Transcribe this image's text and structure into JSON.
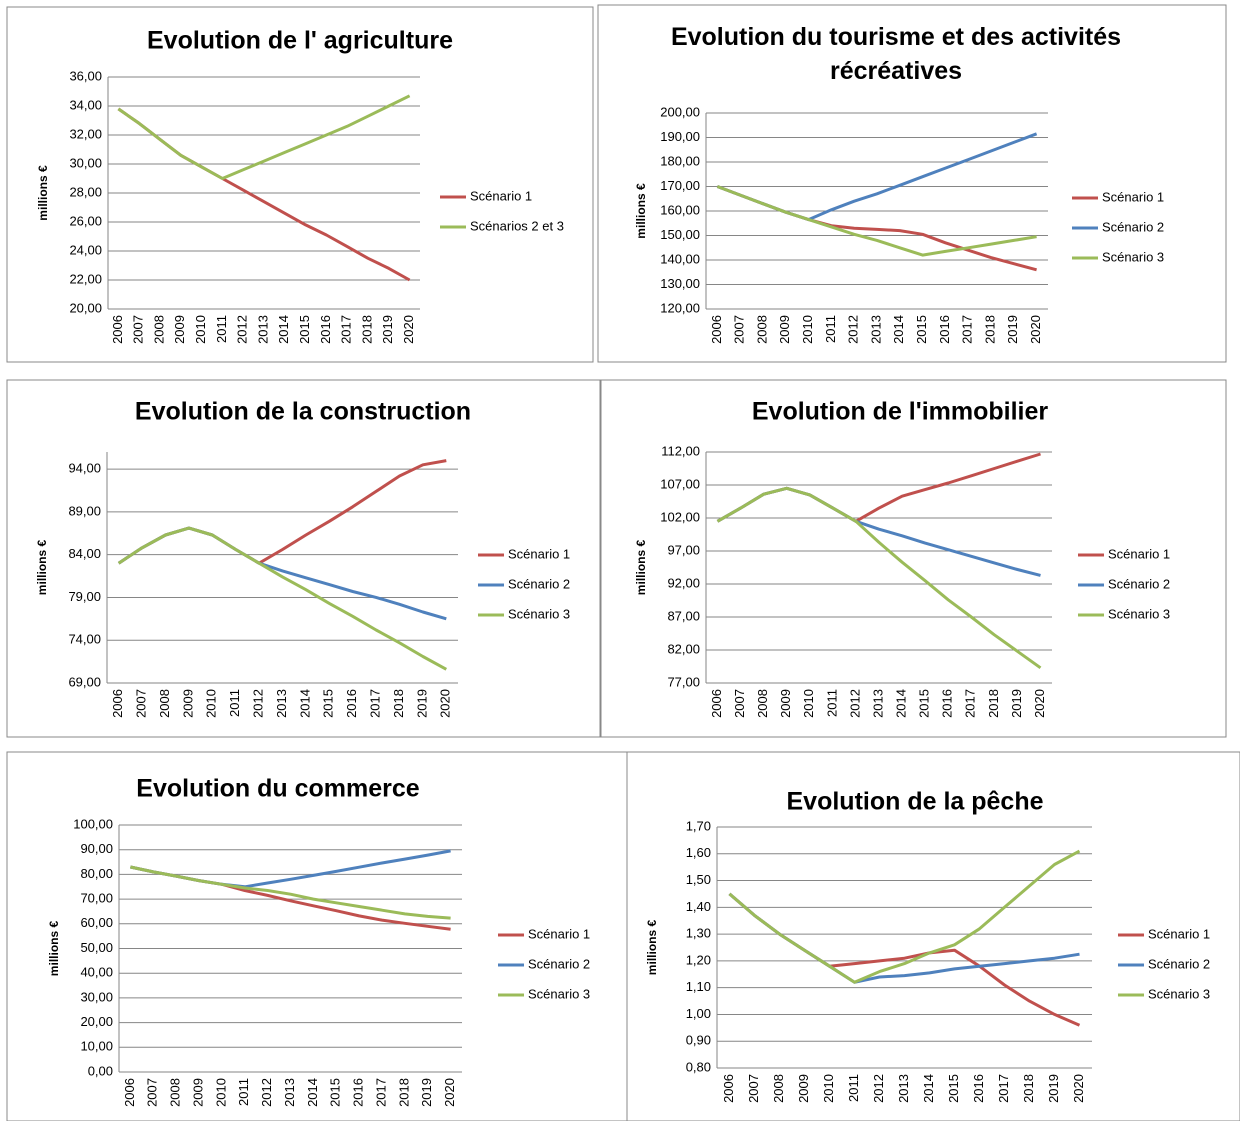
{
  "chart_data": [
    {
      "type": "line",
      "title": "Evolution de l' agriculture",
      "y_label": "millions €",
      "categories": [
        "2006",
        "2007",
        "2008",
        "2009",
        "2010",
        "2011",
        "2012",
        "2013",
        "2014",
        "2015",
        "2016",
        "2017",
        "2018",
        "2019",
        "2020"
      ],
      "ylim": [
        20,
        36
      ],
      "yticks": [
        {
          "value": 20,
          "label": "20,00"
        },
        {
          "value": 22,
          "label": "22,00"
        },
        {
          "value": 24,
          "label": "24,00"
        },
        {
          "value": 26,
          "label": "26,00"
        },
        {
          "value": 28,
          "label": "28,00"
        },
        {
          "value": 30,
          "label": "30,00"
        },
        {
          "value": 32,
          "label": "32,00"
        },
        {
          "value": 34,
          "label": "34,00"
        },
        {
          "value": 36,
          "label": "36,00"
        }
      ],
      "grid": true,
      "series": [
        {
          "name": "Scénario 1",
          "color": "#c0504d",
          "values": [
            33.8,
            32.8,
            31.7,
            30.6,
            29.8,
            29.0,
            28.2,
            27.4,
            26.6,
            25.8,
            25.1,
            24.3,
            23.5,
            22.8,
            22.0
          ]
        },
        {
          "name": "Scénarios 2 et 3",
          "color": "#9bbb59",
          "values": [
            33.8,
            32.8,
            31.7,
            30.6,
            29.8,
            29.0,
            29.6,
            30.2,
            30.8,
            31.4,
            32.0,
            32.6,
            33.3,
            34.0,
            34.7
          ]
        }
      ]
    },
    {
      "type": "line",
      "title": "Evolution du tourisme et des activités récréatives",
      "y_label": "millions €",
      "categories": [
        "2006",
        "2007",
        "2008",
        "2009",
        "2010",
        "2011",
        "2012",
        "2013",
        "2014",
        "2015",
        "2016",
        "2017",
        "2018",
        "2019",
        "2020"
      ],
      "ylim": [
        120,
        200
      ],
      "yticks": [
        {
          "value": 120,
          "label": "120,00"
        },
        {
          "value": 130,
          "label": "130,00"
        },
        {
          "value": 140,
          "label": "140,00"
        },
        {
          "value": 150,
          "label": "150,00"
        },
        {
          "value": 160,
          "label": "160,00"
        },
        {
          "value": 170,
          "label": "170,00"
        },
        {
          "value": 180,
          "label": "180,00"
        },
        {
          "value": 190,
          "label": "190,00"
        },
        {
          "value": 200,
          "label": "200,00"
        }
      ],
      "grid": true,
      "series": [
        {
          "name": "Scénario 1",
          "color": "#c0504d",
          "values": [
            170,
            166.5,
            163,
            159.5,
            156.5,
            154,
            153,
            152.5,
            152,
            150.5,
            147,
            144,
            141,
            138.5,
            136
          ]
        },
        {
          "name": "Scénario 2",
          "color": "#4f81bd",
          "values": [
            170,
            166.5,
            163,
            159.5,
            156.5,
            160.5,
            164,
            167,
            170.5,
            174,
            177.5,
            181,
            184.5,
            188,
            191.5
          ]
        },
        {
          "name": "Scénario 3",
          "color": "#9bbb59",
          "values": [
            170,
            166.5,
            163,
            159.5,
            156.5,
            153.5,
            150.5,
            148,
            145,
            142,
            143.5,
            145,
            146.5,
            148,
            149.5
          ]
        }
      ]
    },
    {
      "type": "line",
      "title": "Evolution de la construction",
      "y_label": "millions €",
      "categories": [
        "2006",
        "2007",
        "2008",
        "2009",
        "2010",
        "2011",
        "2012",
        "2013",
        "2014",
        "2015",
        "2016",
        "2017",
        "2018",
        "2019",
        "2020"
      ],
      "ylim": [
        69,
        96
      ],
      "yticks": [
        {
          "value": 69,
          "label": "69,00"
        },
        {
          "value": 74,
          "label": "74,00"
        },
        {
          "value": 79,
          "label": "79,00"
        },
        {
          "value": 84,
          "label": "84,00"
        },
        {
          "value": 89,
          "label": "89,00"
        },
        {
          "value": 94,
          "label": "94,00"
        }
      ],
      "grid": true,
      "series": [
        {
          "name": "Scénario 1",
          "color": "#c0504d",
          "values": [
            83.0,
            84.8,
            86.3,
            87.1,
            86.3,
            84.6,
            83.0,
            84.6,
            86.3,
            87.9,
            89.6,
            91.4,
            93.2,
            94.5,
            95.0
          ]
        },
        {
          "name": "Scénario 2",
          "color": "#4f81bd",
          "values": [
            83.0,
            84.8,
            86.3,
            87.1,
            86.3,
            84.6,
            83.0,
            82.1,
            81.3,
            80.5,
            79.7,
            79.0,
            78.2,
            77.3,
            76.5
          ]
        },
        {
          "name": "Scénario 3",
          "color": "#9bbb59",
          "values": [
            83.0,
            84.8,
            86.3,
            87.1,
            86.3,
            84.6,
            83.0,
            81.4,
            79.9,
            78.3,
            76.8,
            75.2,
            73.7,
            72.1,
            70.6
          ]
        }
      ]
    },
    {
      "type": "line",
      "title": "Evolution de l'immobilier",
      "y_label": "millions €",
      "categories": [
        "2006",
        "2007",
        "2008",
        "2009",
        "2010",
        "2011",
        "2012",
        "2013",
        "2014",
        "2015",
        "2016",
        "2017",
        "2018",
        "2019",
        "2020"
      ],
      "ylim": [
        77,
        112
      ],
      "yticks": [
        {
          "value": 77,
          "label": "77,00"
        },
        {
          "value": 82,
          "label": "82,00"
        },
        {
          "value": 87,
          "label": "87,00"
        },
        {
          "value": 92,
          "label": "92,00"
        },
        {
          "value": 97,
          "label": "97,00"
        },
        {
          "value": 102,
          "label": "102,00"
        },
        {
          "value": 107,
          "label": "107,00"
        },
        {
          "value": 112,
          "label": "112,00"
        }
      ],
      "grid": true,
      "series": [
        {
          "name": "Scénario 1",
          "color": "#c0504d",
          "values": [
            101.5,
            103.5,
            105.6,
            106.5,
            105.5,
            103.5,
            101.5,
            103.5,
            105.3,
            106.3,
            107.3,
            108.4,
            109.5,
            110.6,
            111.7
          ]
        },
        {
          "name": "Scénario 2",
          "color": "#4f81bd",
          "values": [
            101.5,
            103.5,
            105.6,
            106.5,
            105.5,
            103.5,
            101.5,
            100.3,
            99.3,
            98.2,
            97.2,
            96.2,
            95.2,
            94.2,
            93.3
          ]
        },
        {
          "name": "Scénario 3",
          "color": "#9bbb59",
          "values": [
            101.5,
            103.5,
            105.6,
            106.5,
            105.5,
            103.5,
            101.5,
            98.3,
            95.3,
            92.5,
            89.6,
            87.0,
            84.3,
            81.8,
            79.3
          ]
        }
      ]
    },
    {
      "type": "line",
      "title": "Evolution du commerce",
      "y_label": "millions €",
      "categories": [
        "2006",
        "2007",
        "2008",
        "2009",
        "2010",
        "2011",
        "2012",
        "2013",
        "2014",
        "2015",
        "2016",
        "2017",
        "2018",
        "2019",
        "2020"
      ],
      "ylim": [
        0,
        100
      ],
      "yticks": [
        {
          "value": 0,
          "label": "0,00"
        },
        {
          "value": 10,
          "label": "10,00"
        },
        {
          "value": 20,
          "label": "20,00"
        },
        {
          "value": 30,
          "label": "30,00"
        },
        {
          "value": 40,
          "label": "40,00"
        },
        {
          "value": 50,
          "label": "50,00"
        },
        {
          "value": 60,
          "label": "60,00"
        },
        {
          "value": 70,
          "label": "70,00"
        },
        {
          "value": 80,
          "label": "80,00"
        },
        {
          "value": 90,
          "label": "90,00"
        },
        {
          "value": 100,
          "label": "100,00"
        }
      ],
      "grid": true,
      "series": [
        {
          "name": "Scénario 1",
          "color": "#c0504d",
          "values": [
            83,
            81,
            79.3,
            77.5,
            76,
            73.5,
            71.5,
            69.3,
            67.3,
            65.3,
            63.2,
            61.5,
            60.2,
            59,
            57.8
          ]
        },
        {
          "name": "Scénario 2",
          "color": "#4f81bd",
          "values": [
            83,
            81,
            79.3,
            77.5,
            76,
            75,
            76.5,
            78,
            79.6,
            81.2,
            82.9,
            84.6,
            86.2,
            87.8,
            89.5
          ]
        },
        {
          "name": "Scénario 3",
          "color": "#9bbb59",
          "values": [
            83,
            81,
            79.3,
            77.5,
            76,
            74.5,
            73.5,
            72,
            70,
            68.5,
            67,
            65.5,
            64,
            63,
            62.3
          ]
        }
      ]
    },
    {
      "type": "line",
      "title": "Evolution de la pêche",
      "y_label": "millions €",
      "categories": [
        "2006",
        "2007",
        "2008",
        "2009",
        "2010",
        "2011",
        "2012",
        "2013",
        "2014",
        "2015",
        "2016",
        "2017",
        "2018",
        "2019",
        "2020"
      ],
      "ylim": [
        0.8,
        1.7
      ],
      "yticks": [
        {
          "value": 0.8,
          "label": "0,80"
        },
        {
          "value": 0.9,
          "label": "0,90"
        },
        {
          "value": 1.0,
          "label": "1,00"
        },
        {
          "value": 1.1,
          "label": "1,10"
        },
        {
          "value": 1.2,
          "label": "1,20"
        },
        {
          "value": 1.3,
          "label": "1,30"
        },
        {
          "value": 1.4,
          "label": "1,40"
        },
        {
          "value": 1.5,
          "label": "1,50"
        },
        {
          "value": 1.6,
          "label": "1,60"
        },
        {
          "value": 1.7,
          "label": "1,70"
        }
      ],
      "grid": true,
      "series": [
        {
          "name": "Scénario 1",
          "color": "#c0504d",
          "values": [
            1.45,
            1.37,
            1.3,
            1.24,
            1.18,
            1.19,
            1.2,
            1.21,
            1.23,
            1.24,
            1.18,
            1.11,
            1.05,
            1.0,
            0.96
          ]
        },
        {
          "name": "Scénario 2",
          "color": "#4f81bd",
          "values": [
            1.45,
            1.37,
            1.3,
            1.24,
            1.18,
            1.12,
            1.14,
            1.145,
            1.155,
            1.17,
            1.18,
            1.19,
            1.2,
            1.21,
            1.225
          ]
        },
        {
          "name": "Scénario 3",
          "color": "#9bbb59",
          "values": [
            1.45,
            1.37,
            1.3,
            1.24,
            1.18,
            1.12,
            1.16,
            1.19,
            1.23,
            1.26,
            1.32,
            1.4,
            1.48,
            1.56,
            1.61
          ]
        }
      ]
    }
  ]
}
